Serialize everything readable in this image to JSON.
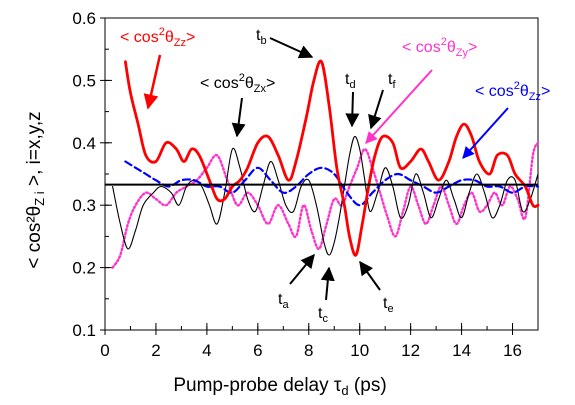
{
  "chart_data": {
    "type": "line",
    "xlabel": "Pump-probe delay τd (ps)",
    "ylabel": "< cos²θZi >,  i=x,y,z",
    "xlim": [
      0,
      17
    ],
    "ylim": [
      0.1,
      0.6
    ],
    "x_ticks": [
      0,
      2,
      4,
      6,
      8,
      10,
      12,
      14,
      16
    ],
    "y_ticks": [
      0.1,
      0.2,
      0.3,
      0.4,
      0.5,
      0.6
    ],
    "x_tick_labels": [
      "0",
      "2",
      "4",
      "6",
      "8",
      "10",
      "12",
      "14",
      "16"
    ],
    "y_tick_labels": [
      "0.1",
      "0.2",
      "0.3",
      "0.4",
      "0.5",
      "0.6"
    ],
    "grid": false,
    "reference_line": {
      "y": 0.333,
      "color": "#000000"
    },
    "series": [
      {
        "name": "< cos²θZz>",
        "color": "#ff0000",
        "style": "solid-thick",
        "x": [
          0.8,
          1.0,
          1.3,
          1.6,
          2.0,
          2.4,
          2.8,
          3.1,
          3.4,
          3.7,
          4.1,
          4.4,
          4.7,
          5.0,
          5.3,
          5.6,
          6.0,
          6.4,
          6.8,
          7.2,
          7.5,
          7.9,
          8.2,
          8.5,
          8.8,
          9.1,
          9.4,
          9.6,
          9.85,
          10.1,
          10.35,
          10.6,
          10.9,
          11.3,
          11.6,
          12.0,
          12.4,
          12.7,
          13.1,
          13.5,
          13.8,
          14.1,
          14.4,
          14.7,
          15.1,
          15.4,
          15.8,
          16.1,
          16.5,
          16.8,
          17.0
        ],
        "y": [
          0.53,
          0.48,
          0.43,
          0.38,
          0.37,
          0.4,
          0.39,
          0.37,
          0.39,
          0.38,
          0.34,
          0.31,
          0.31,
          0.33,
          0.34,
          0.36,
          0.4,
          0.41,
          0.38,
          0.34,
          0.37,
          0.44,
          0.5,
          0.53,
          0.46,
          0.36,
          0.3,
          0.25,
          0.22,
          0.27,
          0.33,
          0.38,
          0.41,
          0.4,
          0.36,
          0.37,
          0.39,
          0.37,
          0.34,
          0.37,
          0.41,
          0.43,
          0.41,
          0.37,
          0.35,
          0.38,
          0.38,
          0.35,
          0.33,
          0.3,
          0.3
        ]
      },
      {
        "name": "< cos²θZx>",
        "color": "#000000",
        "style": "solid-thin",
        "x": [
          0.3,
          0.6,
          0.9,
          1.2,
          1.5,
          1.9,
          2.2,
          2.6,
          2.9,
          3.2,
          3.5,
          3.8,
          4.1,
          4.4,
          4.7,
          5.0,
          5.3,
          5.6,
          5.9,
          6.2,
          6.5,
          6.8,
          7.1,
          7.4,
          7.7,
          8.0,
          8.3,
          8.6,
          8.8,
          9.0,
          9.2,
          9.4,
          9.6,
          9.8,
          10.0,
          10.2,
          10.4,
          10.7,
          11.0,
          11.3,
          11.6,
          11.9,
          12.2,
          12.5,
          12.8,
          13.1,
          13.4,
          13.7,
          14.0,
          14.3,
          14.6,
          14.9,
          15.2,
          15.5,
          15.8,
          16.1,
          16.4,
          16.7,
          17.0
        ],
        "y": [
          0.33,
          0.27,
          0.23,
          0.26,
          0.3,
          0.32,
          0.33,
          0.32,
          0.3,
          0.33,
          0.34,
          0.33,
          0.3,
          0.27,
          0.32,
          0.39,
          0.36,
          0.31,
          0.29,
          0.33,
          0.37,
          0.34,
          0.3,
          0.29,
          0.33,
          0.34,
          0.3,
          0.24,
          0.22,
          0.24,
          0.28,
          0.33,
          0.38,
          0.41,
          0.39,
          0.34,
          0.29,
          0.32,
          0.36,
          0.33,
          0.28,
          0.3,
          0.35,
          0.32,
          0.28,
          0.31,
          0.34,
          0.31,
          0.28,
          0.32,
          0.35,
          0.32,
          0.28,
          0.3,
          0.34,
          0.34,
          0.29,
          0.31,
          0.35
        ]
      },
      {
        "name": "< cos²θZy>",
        "color": "#ff33cc",
        "style": "dotted",
        "x": [
          0.3,
          0.6,
          0.9,
          1.2,
          1.6,
          2.0,
          2.4,
          2.8,
          3.2,
          3.6,
          4.0,
          4.4,
          4.8,
          5.2,
          5.6,
          6.0,
          6.4,
          6.8,
          7.2,
          7.5,
          7.8,
          8.1,
          8.4,
          8.7,
          9.0,
          9.3,
          9.6,
          9.9,
          10.2,
          10.5,
          10.8,
          11.1,
          11.4,
          11.7,
          12.0,
          12.3,
          12.6,
          12.9,
          13.2,
          13.5,
          13.8,
          14.1,
          14.4,
          14.7,
          15.0,
          15.3,
          15.6,
          15.9,
          16.2,
          16.5,
          16.8,
          17.0
        ],
        "y": [
          0.2,
          0.22,
          0.27,
          0.3,
          0.32,
          0.31,
          0.3,
          0.32,
          0.33,
          0.34,
          0.36,
          0.38,
          0.34,
          0.3,
          0.32,
          0.3,
          0.27,
          0.3,
          0.27,
          0.25,
          0.3,
          0.26,
          0.23,
          0.27,
          0.31,
          0.3,
          0.33,
          0.36,
          0.39,
          0.36,
          0.32,
          0.28,
          0.25,
          0.29,
          0.33,
          0.3,
          0.27,
          0.3,
          0.33,
          0.3,
          0.27,
          0.3,
          0.32,
          0.29,
          0.3,
          0.32,
          0.3,
          0.33,
          0.31,
          0.28,
          0.38,
          0.4
        ]
      },
      {
        "name": "< cos²θZz>",
        "color": "#0000ff",
        "style": "dashed",
        "x": [
          0.8,
          1.2,
          1.6,
          2.0,
          2.5,
          3.0,
          3.5,
          4.0,
          4.5,
          5.0,
          5.5,
          6.0,
          6.5,
          7.0,
          7.5,
          8.0,
          8.5,
          9.0,
          9.5,
          10.0,
          10.5,
          11.0,
          11.5,
          12.0,
          12.5,
          13.0,
          13.5,
          14.0,
          14.5,
          15.0,
          15.5,
          16.0,
          16.5,
          17.0
        ],
        "y": [
          0.37,
          0.36,
          0.35,
          0.34,
          0.33,
          0.34,
          0.34,
          0.33,
          0.33,
          0.32,
          0.34,
          0.36,
          0.34,
          0.32,
          0.33,
          0.35,
          0.36,
          0.35,
          0.32,
          0.3,
          0.32,
          0.34,
          0.35,
          0.34,
          0.33,
          0.32,
          0.33,
          0.34,
          0.34,
          0.33,
          0.33,
          0.32,
          0.33,
          0.33
        ]
      }
    ],
    "annotations": [
      {
        "id": "label-red",
        "text": "< cos²θZz>",
        "color": "#ff0000"
      },
      {
        "id": "label-black",
        "text": "< cos²θZx>",
        "color": "#000000"
      },
      {
        "id": "label-pink",
        "text": "< cos²θZy>",
        "color": "#ff33cc"
      },
      {
        "id": "label-blue",
        "text": "< cos²θZz>",
        "color": "#0000ff"
      }
    ],
    "markers": [
      {
        "label": "ta",
        "x": 8.7,
        "y": 0.23
      },
      {
        "label": "tb",
        "x": 8.5,
        "y": 0.525
      },
      {
        "label": "tc",
        "x": 8.75,
        "y": 0.215
      },
      {
        "label": "td",
        "x": 9.8,
        "y": 0.41
      },
      {
        "label": "te",
        "x": 9.95,
        "y": 0.22
      },
      {
        "label": "tf",
        "x": 10.2,
        "y": 0.395
      }
    ]
  }
}
